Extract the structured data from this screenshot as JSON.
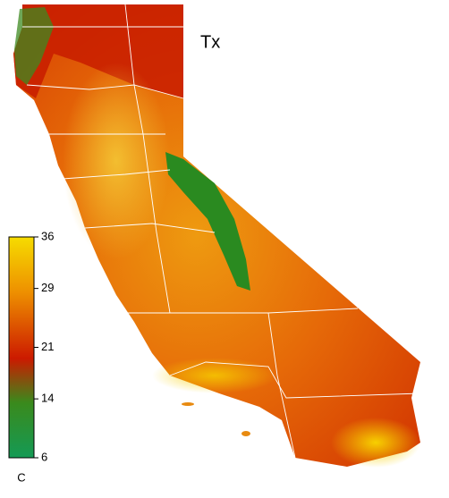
{
  "map": {
    "title": "Tx",
    "colorbar": {
      "unit": "C",
      "lim": [
        6,
        36
      ],
      "ticks": [
        6,
        14,
        21,
        29,
        36
      ]
    }
  }
}
